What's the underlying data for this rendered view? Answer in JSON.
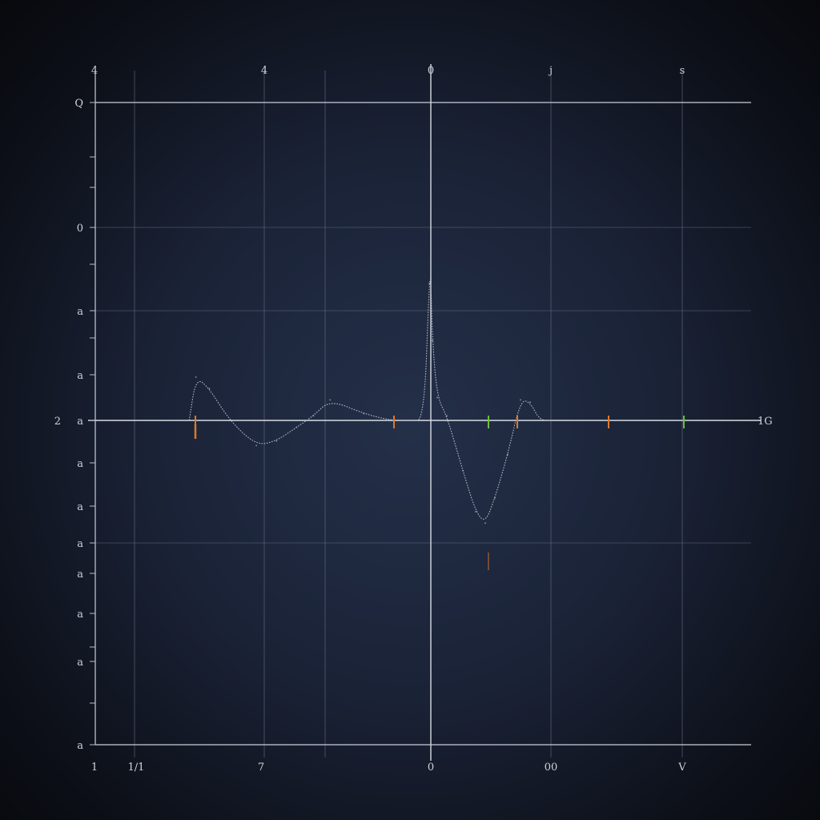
{
  "chart_data": {
    "type": "line",
    "title": "",
    "xlabel": "",
    "ylabel": "",
    "grid": true,
    "xlim": [
      -1.0,
      1.0
    ],
    "ylim": [
      -1.0,
      1.0
    ],
    "top_tick_labels": [
      "4",
      "4",
      "0",
      "j",
      "s"
    ],
    "bottom_tick_labels": [
      "1",
      "1/1",
      "7",
      "0",
      "00",
      "V"
    ],
    "left_tick_labels": [
      "Q",
      "0",
      "a",
      "a",
      "a",
      "a",
      "a",
      "a",
      "a",
      "a",
      "a",
      "a"
    ],
    "zero_line_labels": {
      "left": "2",
      "right": "1G"
    },
    "series": [
      {
        "values_x": [
          -0.72,
          -0.7,
          -0.66,
          -0.6,
          -0.52,
          -0.46,
          -0.4,
          -0.35,
          -0.3,
          -0.2,
          -0.12,
          -0.06,
          -0.02,
          -0.005,
          0.0,
          0.005,
          0.02,
          0.05,
          0.1,
          0.14,
          0.17,
          0.2,
          0.24,
          0.28,
          0.31,
          0.34,
          0.38
        ],
        "values_y": [
          0.0,
          0.19,
          0.14,
          0.0,
          -0.11,
          -0.09,
          -0.03,
          0.02,
          0.09,
          0.03,
          0.0,
          0.0,
          0.0,
          0.6,
          0.62,
          0.35,
          0.1,
          0.02,
          -0.22,
          -0.4,
          -0.45,
          -0.34,
          -0.15,
          0.09,
          0.08,
          0.0,
          0.0
        ]
      }
    ],
    "colors": {
      "background": "#1a2236",
      "grid": "#5b6479",
      "axis": "#c9ced8",
      "line": "#c3c8d2",
      "marker_orange": "#e0782a",
      "marker_green": "#6cbf3a"
    }
  }
}
